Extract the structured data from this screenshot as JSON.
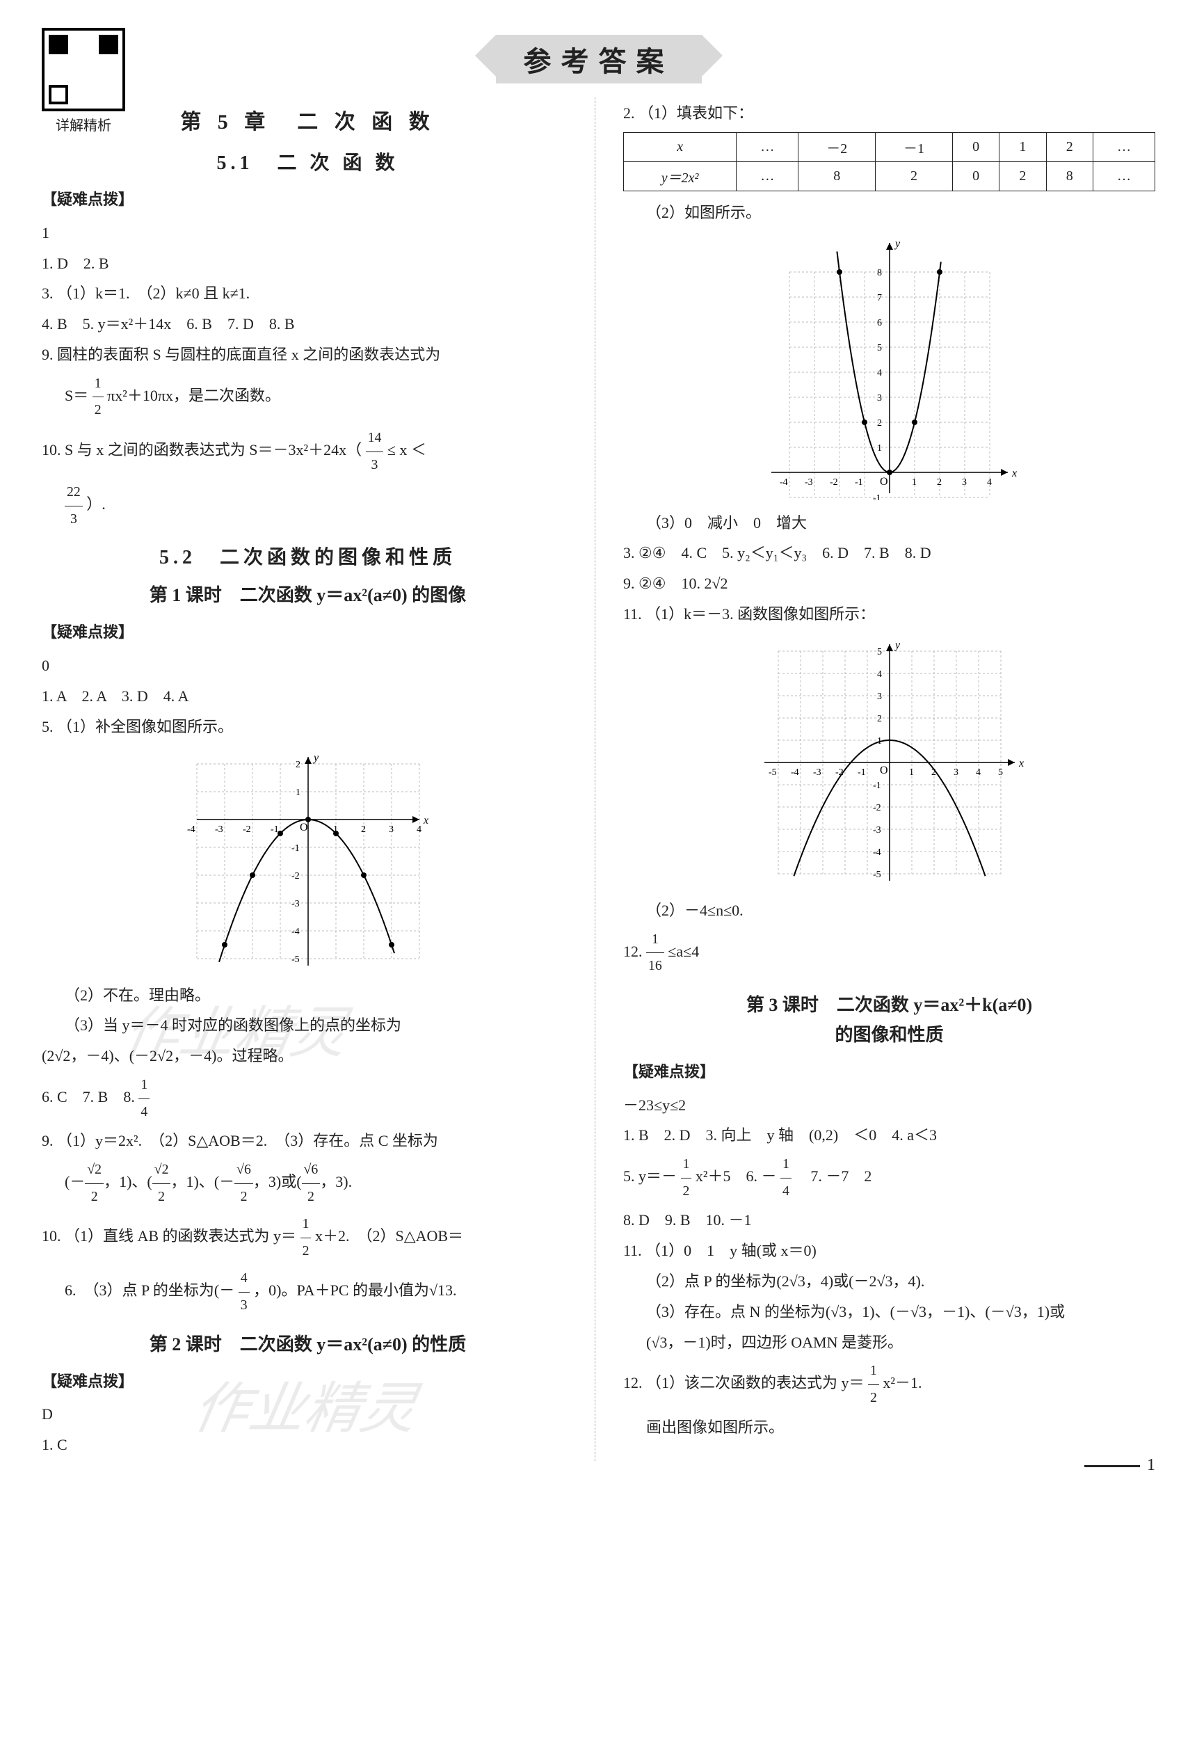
{
  "qr_label": "详解精析",
  "banner": "参考答案",
  "left": {
    "chapter": "第 5 章　二 次 函 数",
    "sec51": {
      "title": "5.1　二 次 函 数",
      "hint_label": "【疑难点拨】",
      "hint_text": "1",
      "lines": [
        "1. D　2. B",
        "3. （1）k＝1.　（2）k≠0 且 k≠1.",
        "4. B　5. y＝x²＋14x　6. B　7. D　8. B"
      ],
      "q9a": "9. 圆柱的表面积 S 与圆柱的底面直径 x 之间的函数表达式为",
      "q9b_prefix": "S＝",
      "q9b_frac": {
        "n": "1",
        "d": "2"
      },
      "q9b_suffix": "πx²＋10πx，是二次函数。",
      "q10a": "10. S 与 x 之间的函数表达式为 S＝－3x²＋24x（",
      "q10_f1": {
        "n": "14",
        "d": "3"
      },
      "q10_mid": "≤ x ＜",
      "q10_f2": {
        "n": "22",
        "d": "3"
      },
      "q10_end": "）."
    },
    "sec52": {
      "title": "5.2　二次函数的图像和性质",
      "lesson1": {
        "title": "第 1 课时　二次函数 y＝ax²(a≠0) 的图像",
        "hint_label": "【疑难点拨】",
        "hint_text": "0",
        "l1": "1. A　2. A　3. D　4. A",
        "l2": "5. （1）补全图像如图所示。",
        "fig": {
          "type": "parabola_down_open_up",
          "xlim": [
            -4,
            4
          ],
          "ylim": [
            -5,
            2
          ],
          "xticks": [
            -4,
            -3,
            -2,
            -1,
            1,
            2,
            3,
            4
          ],
          "yticks": [
            -5,
            -4,
            -3,
            -2,
            -1,
            1,
            2
          ],
          "grid_color": "#bbbbbb",
          "axis_color": "#000000",
          "curve_color": "#000000",
          "a": -0.5,
          "points_x": [
            -3,
            -2,
            -1,
            0,
            1,
            2,
            3
          ]
        },
        "l3": "（2）不在。理由略。",
        "l4": "（3）当 y＝－4 时对应的函数图像上的点的坐标为",
        "l5": "(2√2，－4)、(－2√2，－4)。过程略。",
        "l6a": "6. C　7. B　8. ",
        "l6_frac": {
          "n": "1",
          "d": "4"
        },
        "l7a": "9. （1）y＝2x².　（2）S△AOB＝2.　（3）存在。点 C 坐标为",
        "l7b_parts": [
          {
            "pref": "(－",
            "frac": {
              "n": "√2",
              "d": "2"
            },
            "suf": "，1)、"
          },
          {
            "pref": "(",
            "frac": {
              "n": "√2",
              "d": "2"
            },
            "suf": "，1)、"
          },
          {
            "pref": "(－",
            "frac": {
              "n": "√6",
              "d": "2"
            },
            "suf": "，3)或"
          },
          {
            "pref": "(",
            "frac": {
              "n": "√6",
              "d": "2"
            },
            "suf": "，3)."
          }
        ],
        "l8a": "10. （1）直线 AB 的函数表达式为 y＝",
        "l8_frac": {
          "n": "1",
          "d": "2"
        },
        "l8b": "x＋2.　（2）S△AOB＝",
        "l8c": "6.　（3）点 P 的坐标为(－",
        "l8_frac2": {
          "n": "4",
          "d": "3"
        },
        "l8d": "，0)。PA＋PC 的最小值为√13."
      },
      "lesson2": {
        "title": "第 2 课时　二次函数 y＝ax²(a≠0) 的性质",
        "hint_label": "【疑难点拨】",
        "hint_text": "D",
        "l1": "1. C"
      }
    }
  },
  "right": {
    "q2a": "2. （1）填表如下：",
    "table": {
      "row1": [
        "x",
        "…",
        "－2",
        "－1",
        "0",
        "1",
        "2",
        "…"
      ],
      "row2": [
        "y＝2x²",
        "…",
        "8",
        "2",
        "0",
        "2",
        "8",
        "…"
      ]
    },
    "q2b": "（2）如图所示。",
    "fig2": {
      "xlim": [
        -4,
        4
      ],
      "ylim": [
        -1,
        8
      ],
      "xticks": [
        -4,
        -3,
        -2,
        -1,
        1,
        2,
        3,
        4
      ],
      "yticks": [
        -1,
        1,
        2,
        3,
        4,
        5,
        6,
        7,
        8
      ],
      "grid_color": "#bbbbbb",
      "axis_color": "#000000",
      "curve_color": "#000000",
      "a": 2,
      "points_x": [
        -2,
        -1,
        0,
        1,
        2
      ]
    },
    "q2c": "（3）0　减小　0　增大",
    "l3": "3. ②④　4. C　5. y₂＜y₁＜y₃　6. D　7. B　8. D",
    "l4": "9. ②④　10. 2√2",
    "l5": "11. （1）k＝－3. 函数图像如图所示：",
    "fig3": {
      "xlim": [
        -5,
        5
      ],
      "ylim": [
        -5,
        5
      ],
      "xticks": [
        -5,
        -4,
        -3,
        -2,
        -1,
        1,
        2,
        3,
        4,
        5
      ],
      "yticks": [
        -5,
        -4,
        -3,
        -2,
        -1,
        1,
        2,
        3,
        4,
        5
      ],
      "grid_color": "#bbbbbb",
      "axis_color": "#000000",
      "curve_color": "#000000",
      "a": -0.33,
      "k": 1
    },
    "l6": "（2）－4≤n≤0.",
    "l7a": "12. ",
    "l7_frac": {
      "n": "1",
      "d": "16"
    },
    "l7b": "≤a≤4",
    "lesson3": {
      "title_a": "第 3 课时　二次函数 y＝ax²＋k(a≠0)",
      "title_b": "的图像和性质",
      "hint_label": "【疑难点拨】",
      "hint_text": "－23≤y≤2",
      "l1": "1. B　2. D　3. 向上　y 轴　(0,2)　＜0　4. a＜3",
      "l2a": "5. y＝－",
      "l2_frac": {
        "n": "1",
        "d": "2"
      },
      "l2b": "x²＋5　6. －",
      "l2_frac2": {
        "n": "1",
        "d": "4"
      },
      "l2c": "　7. －7　2",
      "l3": "8. D　9. B　10. －1",
      "l4": "11. （1）0　1　y 轴(或 x＝0)",
      "l5": "（2）点 P 的坐标为(2√3，4)或(－2√3，4).",
      "l6": "（3）存在。点 N 的坐标为(√3，1)、(－√3，－1)、(－√3，1)或",
      "l7": "(√3，－1)时，四边形 OAMN 是菱形。",
      "l8a": "12. （1）该二次函数的表达式为 y＝",
      "l8_frac": {
        "n": "1",
        "d": "2"
      },
      "l8b": "x²－1.",
      "l9": "画出图像如图所示。"
    }
  },
  "watermark": "作业精灵",
  "page_number": "1"
}
